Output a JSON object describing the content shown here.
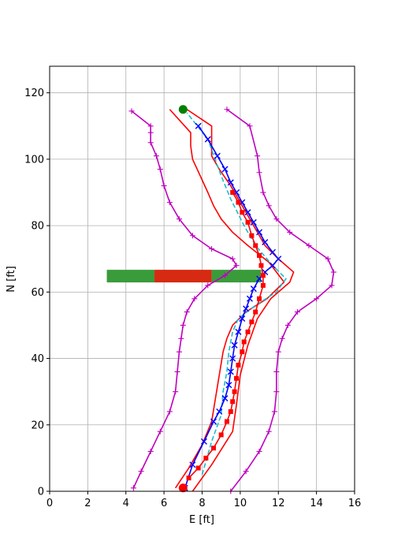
{
  "chart_data": {
    "type": "line",
    "title": "",
    "xlabel": "E [ft]",
    "ylabel": "N [ft]",
    "xlim": [
      0,
      16
    ],
    "ylim": [
      0,
      128
    ],
    "xticks": [
      0,
      2,
      4,
      6,
      8,
      10,
      12,
      14,
      16
    ],
    "yticks": [
      0,
      20,
      40,
      60,
      80,
      100,
      120
    ],
    "grid": true,
    "series": [
      {
        "role": "outer-left-bound",
        "color": "#bf00bf",
        "marker": "+",
        "x": [
          4.4,
          4.8,
          5.3,
          5.8,
          6.3,
          6.6,
          6.7,
          6.8,
          6.9,
          7.0,
          7.2,
          7.6,
          8.3,
          9.2,
          9.8,
          9.6,
          8.5,
          7.5,
          6.8,
          6.3,
          6.0,
          5.8,
          5.6,
          5.3,
          5.3,
          5.3,
          4.3
        ],
        "y": [
          1,
          6,
          12,
          18,
          24,
          30,
          36,
          42,
          46,
          50,
          54,
          58,
          62,
          65,
          68,
          70,
          73,
          77,
          82,
          87,
          92,
          97,
          101,
          105,
          108,
          110,
          114.5
        ]
      },
      {
        "role": "outer-right-bound",
        "color": "#bf00bf",
        "marker": "+",
        "x": [
          9.5,
          10.3,
          11.0,
          11.5,
          11.8,
          11.9,
          11.9,
          12.0,
          12.2,
          12.5,
          13.0,
          14.0,
          14.8,
          14.9,
          14.6,
          13.6,
          12.6,
          11.9,
          11.5,
          11.2,
          11.0,
          10.9,
          10.5,
          9.3
        ],
        "y": [
          0,
          6,
          12,
          18,
          24,
          30,
          36,
          42,
          46,
          50,
          54,
          58,
          62,
          66,
          70,
          74,
          78,
          82,
          86,
          90,
          96,
          101,
          110,
          115
        ]
      },
      {
        "role": "inner-left-bound",
        "color": "#ff0000",
        "x": [
          6.6,
          7.3,
          8.0,
          8.5,
          8.7,
          8.9,
          9.1,
          9.3,
          9.6,
          10.3,
          11.4,
          12.3,
          11.5,
          10.4,
          9.6,
          9.0,
          8.6,
          8.3,
          7.9,
          7.5,
          7.4,
          7.4,
          6.3
        ],
        "y": [
          1,
          7,
          14,
          21,
          28,
          35,
          42,
          46,
          50,
          54,
          58,
          63,
          69,
          74,
          78,
          82,
          86,
          90,
          95,
          100,
          104,
          108,
          115
        ]
      },
      {
        "role": "inner-right-bound",
        "color": "#ff0000",
        "x": [
          7.5,
          8.5,
          9.6,
          9.8,
          10.0,
          10.4,
          10.9,
          11.6,
          12.6,
          12.8,
          12.0,
          11.3,
          10.7,
          10.1,
          9.5,
          8.9,
          8.5,
          8.5,
          7.2
        ],
        "y": [
          0,
          8,
          18,
          26,
          35,
          44,
          52,
          58,
          63,
          66,
          70,
          74,
          80,
          86,
          92,
          97,
          101,
          110,
          115
        ]
      },
      {
        "role": "reference-path",
        "color": "#17becf",
        "dash": true,
        "x": [
          8.0,
          8.5,
          9.0,
          9.1,
          9.3,
          9.4,
          9.6,
          9.9,
          10.8,
          11.9,
          12.4,
          11.7,
          10.8,
          10.2,
          9.5,
          9.0,
          8.3,
          7.2
        ],
        "y": [
          5,
          15,
          23,
          30,
          36,
          42,
          48,
          52,
          56,
          60,
          64,
          68,
          74,
          80,
          88,
          95,
          106,
          114
        ]
      },
      {
        "role": "planned-trajectory",
        "color": "#0000ff",
        "marker": "x",
        "x": [
          7.1,
          7.5,
          8.1,
          8.6,
          8.9,
          9.2,
          9.4,
          9.5,
          9.6,
          9.7,
          9.9,
          10.1,
          10.3,
          10.5,
          10.7,
          11.0,
          11.3,
          11.7,
          12.0,
          11.7,
          11.3,
          11.0,
          10.7,
          10.4,
          10.1,
          9.8,
          9.5,
          9.2,
          8.8,
          8.3,
          7.8
        ],
        "y": [
          1,
          8,
          15,
          21,
          24,
          28,
          32,
          36,
          40,
          44,
          48,
          52,
          55,
          58,
          61,
          64,
          66,
          68,
          70,
          72,
          75,
          78,
          81,
          84,
          87,
          90,
          93,
          97,
          101,
          106,
          110
        ]
      },
      {
        "role": "tracked-samples",
        "color": "#ff0000",
        "marker": "s",
        "x": [
          7.3,
          7.8,
          8.2,
          8.6,
          9.0,
          9.3,
          9.5,
          9.6,
          9.7,
          9.8,
          9.9,
          10.1,
          10.2,
          10.4,
          10.6,
          10.8,
          11.0,
          11.2,
          11.2,
          11.1,
          11.0,
          10.8,
          10.6,
          10.4,
          10.1,
          9.9,
          9.6
        ],
        "y": [
          4,
          7,
          10,
          13,
          17,
          21,
          24,
          27,
          30,
          34,
          38,
          42,
          45,
          48,
          51,
          54,
          58,
          62,
          65,
          68,
          71,
          74,
          77,
          81,
          84,
          87,
          90
        ]
      }
    ],
    "obstacle": {
      "y": 64.8,
      "x_start": 3.0,
      "x_end": 11.1,
      "segments": [
        {
          "x_start": 3.0,
          "x_end": 5.5,
          "color": "#3a9b3a"
        },
        {
          "x_start": 5.5,
          "x_end": 8.5,
          "color": "#d62a12"
        },
        {
          "x_start": 8.5,
          "x_end": 11.1,
          "color": "#3a9b3a"
        }
      ]
    },
    "start_point": {
      "x": 7.0,
      "y": 1.0,
      "color": "#ff0000"
    },
    "goal_point": {
      "x": 7.0,
      "y": 115.0,
      "color": "#008000"
    }
  }
}
